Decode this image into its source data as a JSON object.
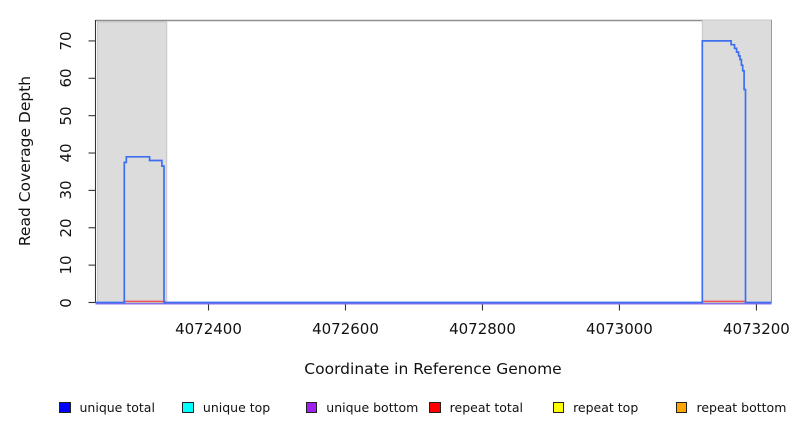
{
  "figure": {
    "background": "#FFFFFF"
  },
  "chart_data": {
    "type": "line",
    "title": "",
    "xlabel": "Coordinate in Reference Genome",
    "ylabel": "Read Coverage Depth",
    "xlim": [
      4072235,
      4073222
    ],
    "ylim": [
      0,
      75.6
    ],
    "x_ticks": [
      4072400,
      4072600,
      4072800,
      4073000,
      4073200
    ],
    "y_ticks": [
      0,
      10,
      20,
      30,
      40,
      50,
      60,
      70
    ],
    "grid": "off",
    "legend_position": "bottom",
    "shaded_regions": [
      {
        "x0": 4072238,
        "x1": 4072339
      },
      {
        "x0": 4073121,
        "x1": 4073222
      }
    ],
    "series": [
      {
        "name": "unique top",
        "legend_color": "#00FFFF",
        "render": {
          "color": "#00FFFF",
          "dy": 1.2,
          "width": 1.6
        },
        "lines": [
          [
            [
              4072235,
              0
            ],
            [
              4073222,
              0
            ]
          ]
        ]
      },
      {
        "name": "repeat top",
        "legend_color": "#FFFF00",
        "render": {
          "color": "#FFFF00",
          "dy": 1.2,
          "width": 1.6
        },
        "lines": [
          [
            [
              4072235,
              0
            ],
            [
              4073222,
              0
            ]
          ]
        ]
      },
      {
        "name": "repeat bottom",
        "legend_color": "#FFA500",
        "render": {
          "color": "#FFA500",
          "dy": 1.2,
          "width": 1.6
        },
        "lines": [
          [
            [
              4072235,
              0
            ],
            [
              4073222,
              0
            ]
          ]
        ]
      },
      {
        "name": "unique bottom",
        "legend_color": "#A020F0",
        "render": {
          "color": "#8F6FEC",
          "dy": 1.2,
          "width": 1.7
        },
        "lines": [
          [
            [
              4072235,
              0
            ],
            [
              4073222,
              0
            ]
          ]
        ]
      },
      {
        "name": "repeat total",
        "legend_color": "#FF0000",
        "render": {
          "color": "#F0545E",
          "dy": -1.2,
          "width": 1.4
        },
        "lines": [
          [
            [
              4072278,
              0
            ],
            [
              4072337,
              0
            ]
          ],
          [
            [
              4073122,
              0
            ],
            [
              4073183,
              0
            ]
          ]
        ]
      },
      {
        "name": "unique total",
        "legend_color": "#0000FF",
        "render": {
          "color": "#3D6FF0",
          "dy": 0,
          "width": 1.7
        },
        "lines": [
          [
            [
              4072235,
              0
            ],
            [
              4072277,
              0
            ],
            [
              4072277,
              37.5
            ],
            [
              4072280,
              37.5
            ],
            [
              4072280,
              39
            ],
            [
              4072314,
              39
            ],
            [
              4072314,
              38
            ],
            [
              4072332,
              38
            ],
            [
              4072332,
              36.5
            ],
            [
              4072335,
              36.5
            ],
            [
              4072335,
              0
            ],
            [
              4073121,
              0
            ],
            [
              4073121,
              70
            ],
            [
              4073163,
              70
            ],
            [
              4073163,
              69
            ],
            [
              4073168,
              69
            ],
            [
              4073168,
              68
            ],
            [
              4073171,
              68
            ],
            [
              4073171,
              67
            ],
            [
              4073174,
              67
            ],
            [
              4073174,
              66
            ],
            [
              4073176,
              66
            ],
            [
              4073176,
              65
            ],
            [
              4073178,
              65
            ],
            [
              4073178,
              63.5
            ],
            [
              4073180,
              63.5
            ],
            [
              4073180,
              62
            ],
            [
              4073182,
              62
            ],
            [
              4073182,
              57
            ],
            [
              4073184,
              57
            ],
            [
              4073184,
              0
            ],
            [
              4073222,
              0
            ]
          ]
        ]
      }
    ],
    "style": {
      "band_fill": "#DCDCDC",
      "band_stroke": "#C6C6C6",
      "top_rule_color": "#8F8F8F",
      "axis_color": "#333333",
      "right_border_color": "#9A9A9A"
    }
  },
  "legend": {
    "items": [
      {
        "label": "unique total",
        "color": "#0000FF"
      },
      {
        "label": "unique top",
        "color": "#00FFFF"
      },
      {
        "label": "unique bottom",
        "color": "#A020F0"
      },
      {
        "label": "repeat total",
        "color": "#FF0000"
      },
      {
        "label": "repeat top",
        "color": "#FFFF00"
      },
      {
        "label": "repeat bottom",
        "color": "#FFA500"
      }
    ]
  }
}
